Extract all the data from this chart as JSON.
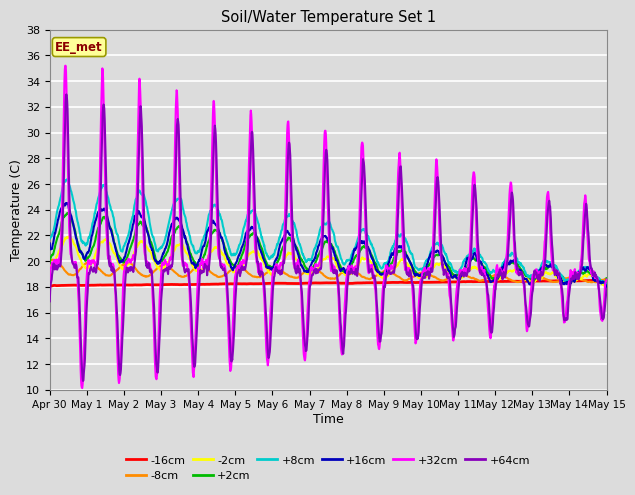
{
  "title": "Soil/Water Temperature Set 1",
  "xlabel": "Time",
  "ylabel": "Temperature (C)",
  "ylim": [
    10,
    38
  ],
  "yticks": [
    10,
    12,
    14,
    16,
    18,
    20,
    22,
    24,
    26,
    28,
    30,
    32,
    34,
    36,
    38
  ],
  "annotation": "EE_met",
  "annotation_color": "#8B0000",
  "annotation_bg": "#FFFF99",
  "annotation_edge": "#999900",
  "bg_color": "#E0E0E0",
  "series_colors": {
    "-16cm": "#FF0000",
    "-8cm": "#FF8C00",
    "-2cm": "#FFFF00",
    "+2cm": "#00BB00",
    "+8cm": "#00CCCC",
    "+16cm": "#0000BB",
    "+32cm": "#FF00FF",
    "+64cm": "#8800BB"
  },
  "legend_row1": [
    "-16cm",
    "-8cm",
    "-2cm",
    "+2cm",
    "+8cm",
    "+16cm"
  ],
  "legend_row2": [
    "+32cm",
    "+64cm"
  ],
  "xtick_positions": [
    0,
    1,
    2,
    3,
    4,
    5,
    6,
    7,
    8,
    9,
    10,
    11,
    12,
    13,
    14,
    15
  ],
  "xtick_labels": [
    "Apr 30",
    "May 1",
    "May 2",
    "May 3",
    "May 4",
    "May 5",
    "May 6",
    "May 7",
    "May 8",
    "May 9",
    "May 10",
    "May 11",
    "May 12",
    "May 13",
    "May 14",
    "May 15"
  ]
}
